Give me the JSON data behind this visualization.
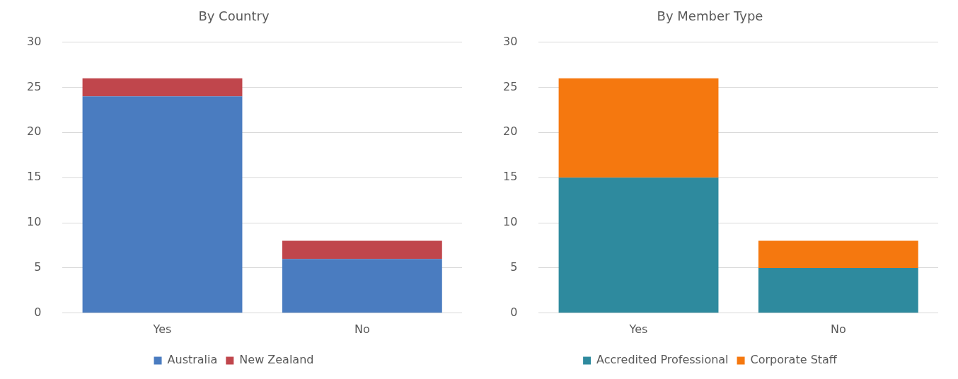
{
  "chart_data": [
    {
      "type": "bar",
      "title": "By Country",
      "categories": [
        "Yes",
        "No"
      ],
      "stacked": true,
      "ylim": [
        0,
        30
      ],
      "yticks": [
        0,
        5,
        10,
        15,
        20,
        25,
        30
      ],
      "grid": "y",
      "legend": "bottom",
      "series": [
        {
          "name": "Australia",
          "color": "#4a7cc0",
          "values": [
            24,
            6
          ]
        },
        {
          "name": "New Zealand",
          "color": "#c0464c",
          "values": [
            2,
            2
          ]
        }
      ]
    },
    {
      "type": "bar",
      "title": "By Member Type",
      "categories": [
        "Yes",
        "No"
      ],
      "stacked": true,
      "ylim": [
        0,
        30
      ],
      "yticks": [
        0,
        5,
        10,
        15,
        20,
        25,
        30
      ],
      "grid": "y",
      "legend": "bottom",
      "series": [
        {
          "name": "Accredited Professional",
          "color": "#2e8a9e",
          "values": [
            15,
            5
          ]
        },
        {
          "name": "Corporate Staff",
          "color": "#f5780f",
          "values": [
            11,
            3
          ]
        }
      ]
    }
  ]
}
